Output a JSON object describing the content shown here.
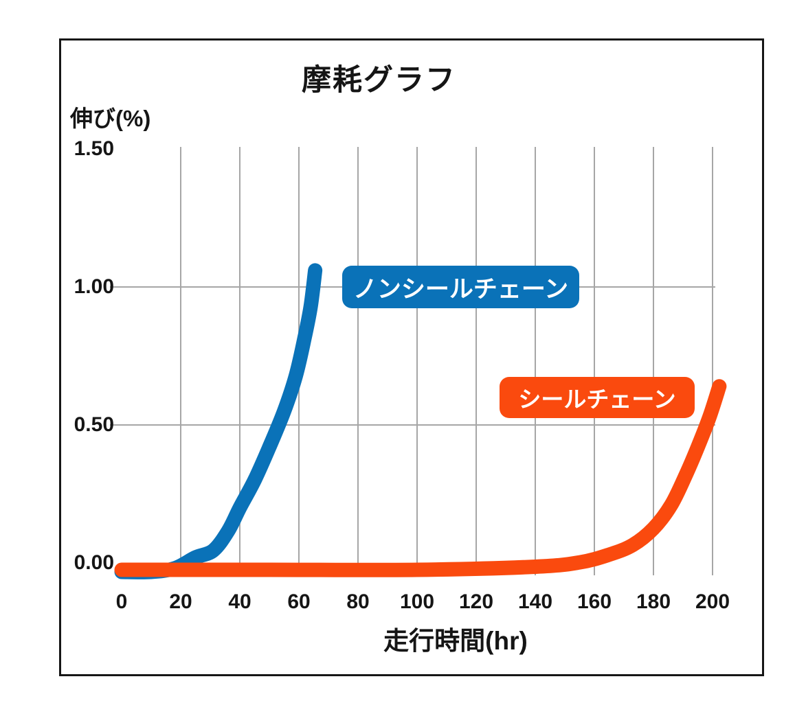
{
  "chart_data": {
    "type": "line",
    "title": "摩耗グラフ",
    "ylabel": "伸び(%)",
    "xlabel": "走行時間(hr)",
    "xlim": [
      0,
      210
    ],
    "ylim": [
      0,
      1.5
    ],
    "grid": true,
    "gridline_color": "#a6a6a6",
    "x_ticks": [
      0,
      20,
      40,
      60,
      80,
      100,
      120,
      140,
      160,
      180,
      200
    ],
    "y_ticks": [
      {
        "value": 1.5,
        "label": "1.50"
      },
      {
        "value": 1.0,
        "label": "1.00"
      },
      {
        "value": 0.5,
        "label": "0.50"
      },
      {
        "value": 0.0,
        "label": "0.00"
      }
    ],
    "horizontal_gridlines_at": [
      1.0,
      0.5
    ],
    "legend_position": "inline-badges",
    "series": [
      {
        "name": "ノンシールチェーン",
        "color": "#0a72b8",
        "points": [
          [
            0,
            0
          ],
          [
            10,
            0
          ],
          [
            18,
            0.005
          ],
          [
            25,
            0.02
          ],
          [
            31,
            0.045
          ],
          [
            36,
            0.115
          ],
          [
            40,
            0.2
          ],
          [
            45,
            0.3
          ],
          [
            50,
            0.42
          ],
          [
            55,
            0.55
          ],
          [
            59,
            0.68
          ],
          [
            62,
            0.82
          ],
          [
            64,
            0.93
          ],
          [
            65.5,
            1.06
          ]
        ]
      },
      {
        "name": "シールチェーン",
        "color": "#fa4a0e",
        "points": [
          [
            0,
            0
          ],
          [
            50,
            0
          ],
          [
            100,
            0
          ],
          [
            140,
            0.005
          ],
          [
            155,
            0.012
          ],
          [
            165,
            0.03
          ],
          [
            173,
            0.065
          ],
          [
            180,
            0.125
          ],
          [
            186,
            0.21
          ],
          [
            191,
            0.32
          ],
          [
            195,
            0.42
          ],
          [
            199,
            0.53
          ],
          [
            202.3,
            0.64
          ]
        ]
      }
    ]
  }
}
